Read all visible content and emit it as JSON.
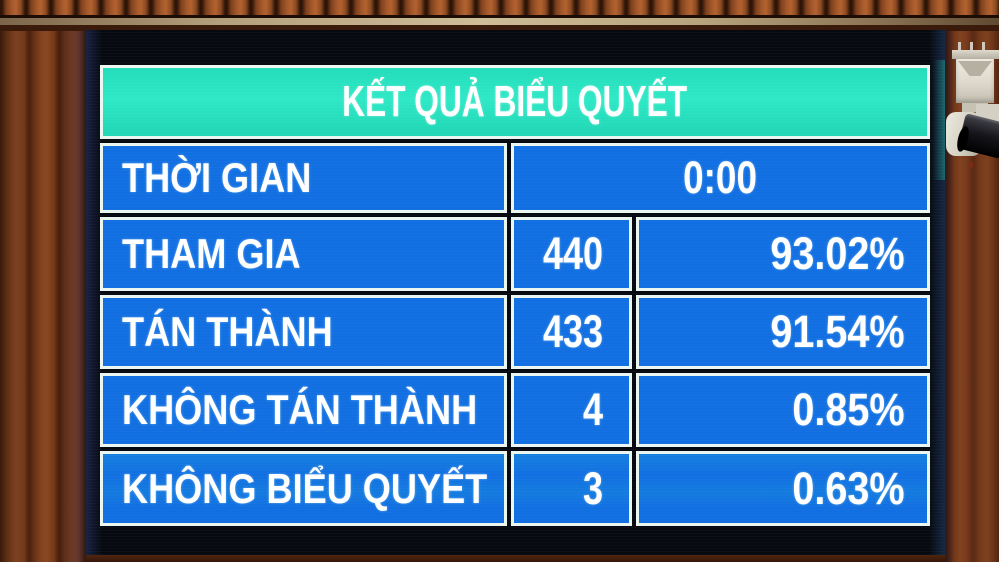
{
  "screen": {
    "title": "KẾT QUẢ BIỂU QUYẾT",
    "rows": [
      {
        "label": "THỜI GIAN",
        "value": "0:00"
      },
      {
        "label": "THAM GIA",
        "count": "440",
        "percent": "93.02%"
      },
      {
        "label": "TÁN THÀNH",
        "count": "433",
        "percent": "91.54%"
      },
      {
        "label": "KHÔNG TÁN THÀNH",
        "count": "4",
        "percent": "0.85%"
      },
      {
        "label": "KHÔNG BIỂU QUYẾT",
        "count": "3",
        "percent": "0.63%"
      }
    ],
    "colors": {
      "header_bg": "#2ee8c6",
      "cell_bg": "#116fe2",
      "border": "#eaf6ef",
      "text": "#ffffff",
      "screen_bg": "#060a10"
    }
  },
  "environment": {
    "wall": "wood-slat-panels",
    "camera_icon": "security-camera"
  }
}
